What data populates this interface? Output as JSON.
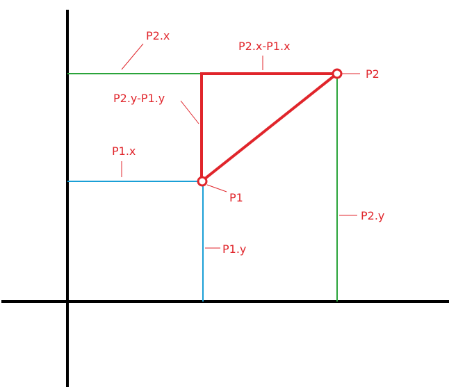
{
  "labels": {
    "p2x": "P2.x",
    "p2x_minus_p1x": "P2.x-P1.x",
    "p2": "P2",
    "p2y_minus_p1y": "P2.y-P1.y",
    "p1x": "P1.x",
    "p1": "P1",
    "p2y": "P2.y",
    "p1y": "P1.y"
  },
  "colors": {
    "axes": "#000000",
    "p1_guides": "#1a9fd6",
    "p2_guides": "#2aa43a",
    "segments": "#e0252b",
    "text": "#e0252b"
  }
}
